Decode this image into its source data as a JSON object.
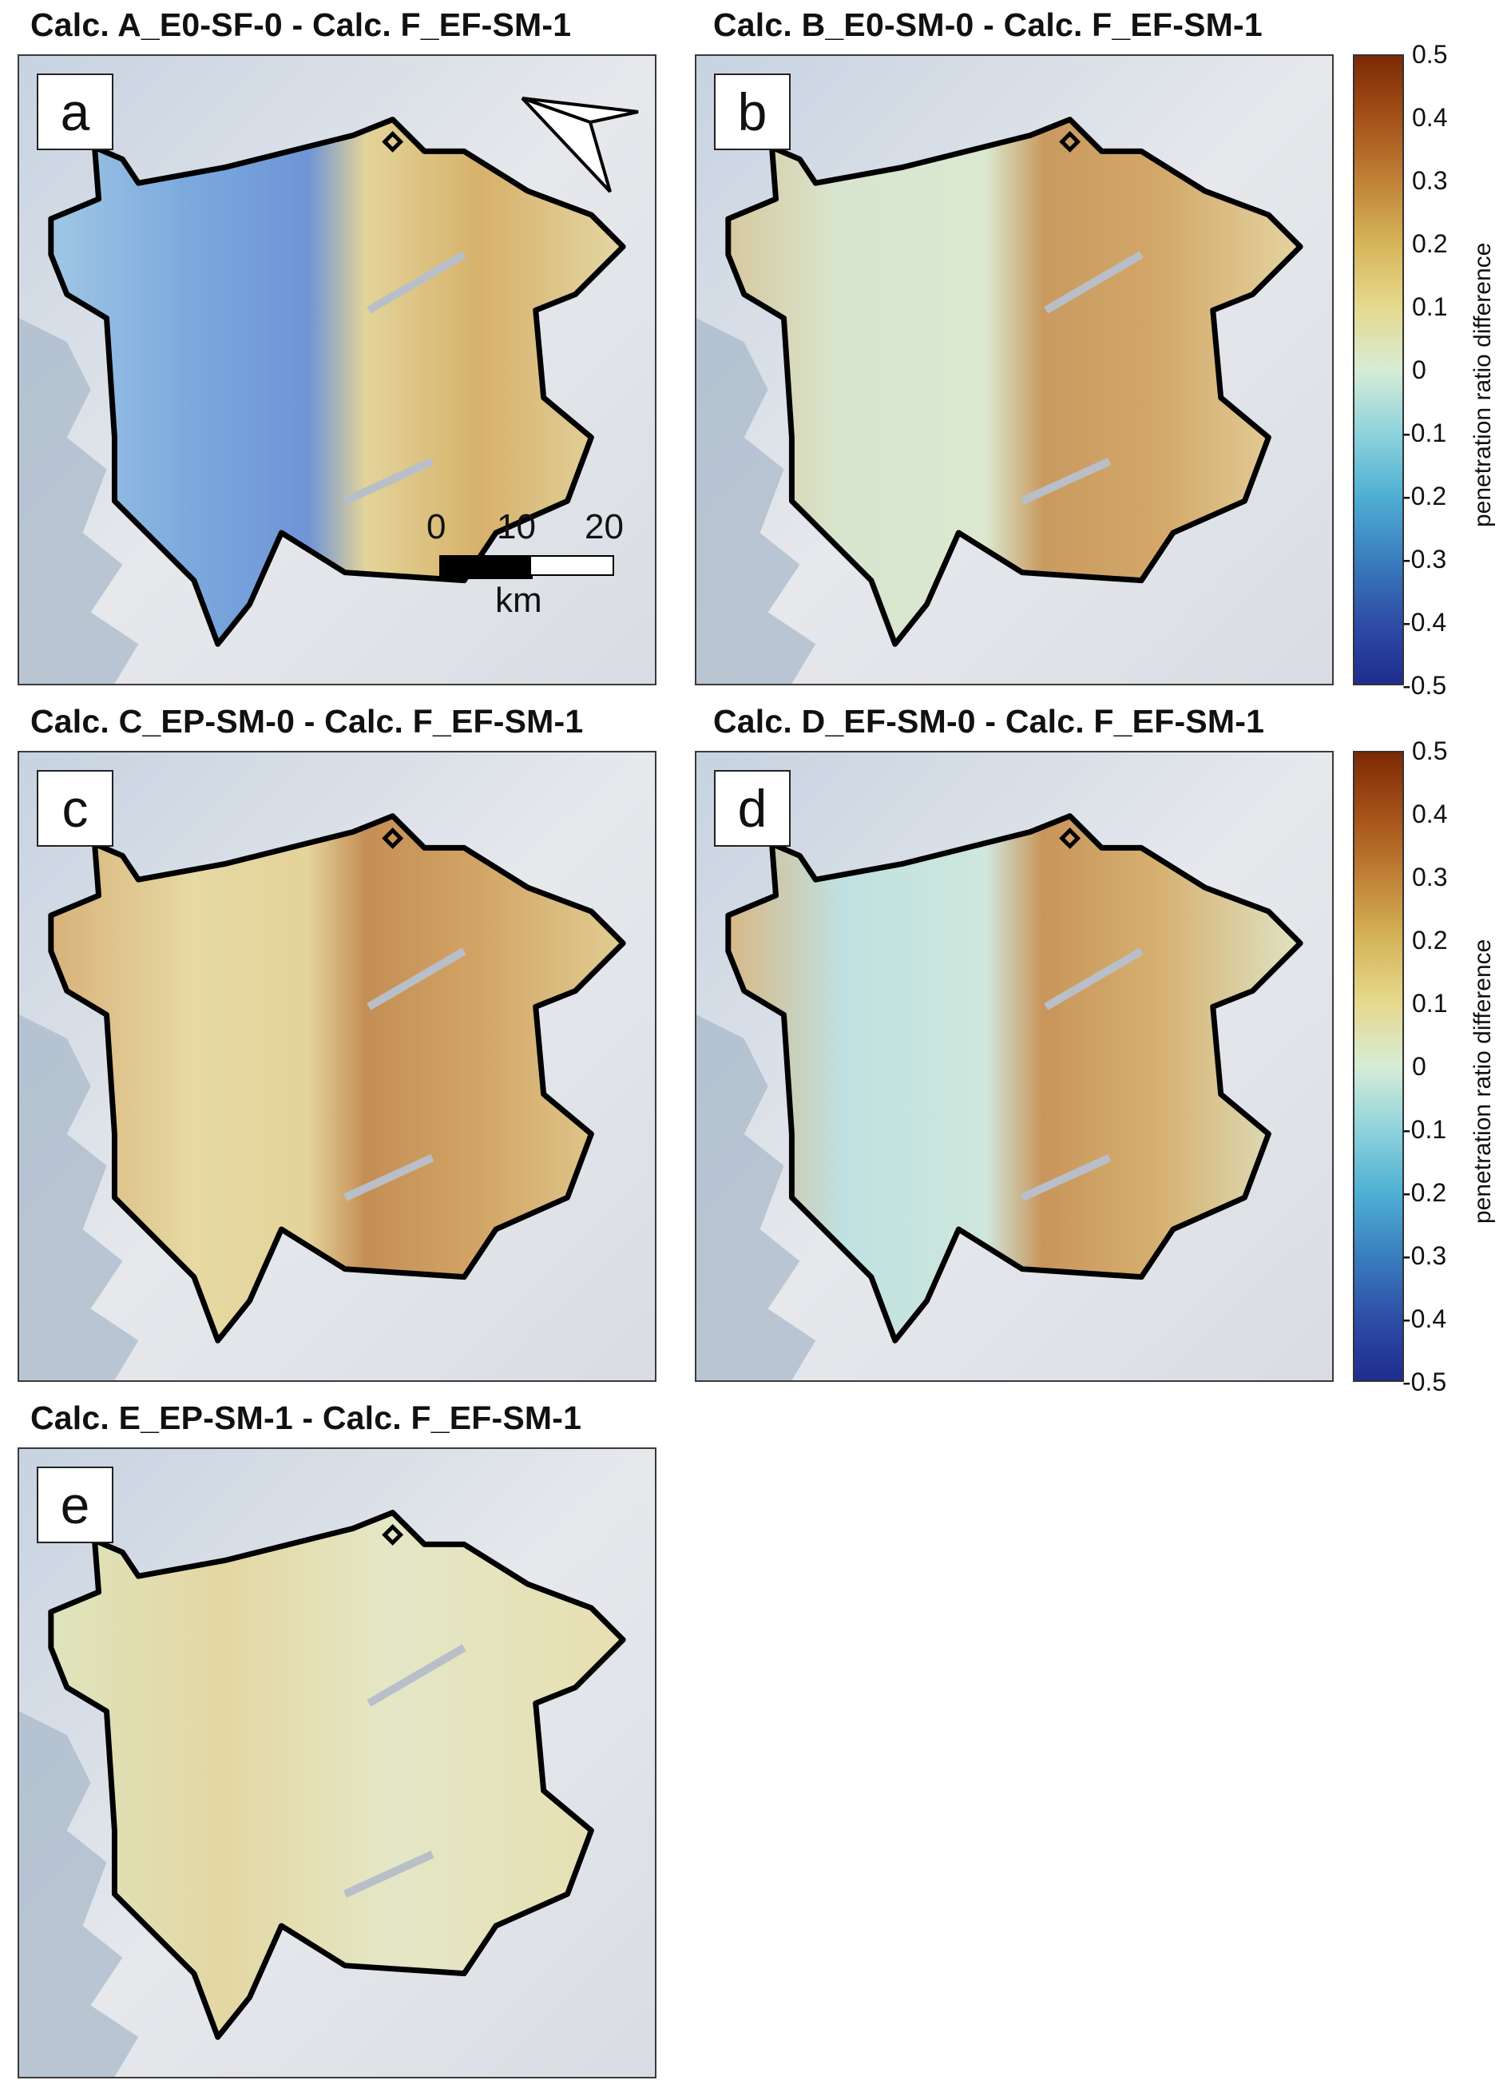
{
  "panels": [
    {
      "id": "a",
      "title": "Calc. A_E0-SF-0 - Calc. F_EF-SM-1",
      "letter": "a",
      "tint": "mixed-blue-west"
    },
    {
      "id": "b",
      "title": "Calc. B_E0-SM-0 - Calc. F_EF-SM-1",
      "letter": "b",
      "tint": "green-yellow-east-brown"
    },
    {
      "id": "c",
      "title": "Calc. C_EP-SM-0 - Calc. F_EF-SM-1",
      "letter": "c",
      "tint": "yellow-east-brown"
    },
    {
      "id": "d",
      "title": "Calc. D_EF-SM-0 - Calc. F_EF-SM-1",
      "letter": "d",
      "tint": "cyan-west-brown-east"
    },
    {
      "id": "e",
      "title": "Calc. E_EP-SM-1 - Calc. F_EF-SM-1",
      "letter": "e",
      "tint": "pale-yellow"
    }
  ],
  "scalebar": {
    "ticks": [
      "0",
      "10",
      "20"
    ],
    "unit": "km"
  },
  "colorbar": {
    "label": "penetration ratio difference",
    "ticks": [
      "0.5",
      "0.4",
      "0.3",
      "0.2",
      "0.1",
      "0",
      "-0.1",
      "-0.2",
      "-0.3",
      "-0.4",
      "-0.5"
    ],
    "range": [
      -0.5,
      0.5
    ],
    "colors": {
      "max": "#7b2a05",
      "mid": "#d6ecd6",
      "min": "#1f2d8f"
    }
  },
  "north_arrow_icon": "north-arrow-icon"
}
